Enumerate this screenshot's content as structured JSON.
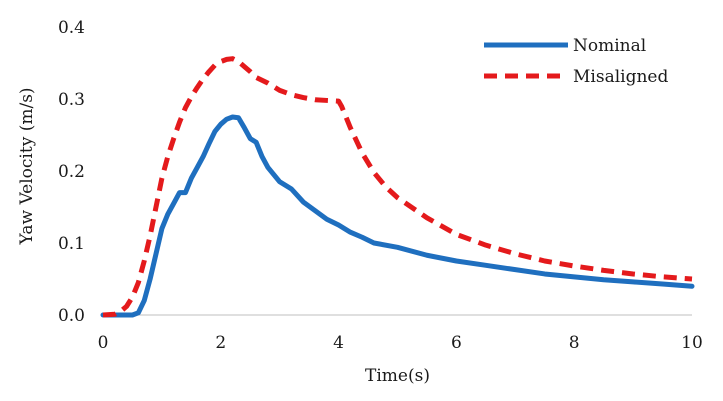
{
  "chart_data": {
    "type": "line",
    "xlabel": "Time(s)",
    "ylabel": "Yaw Velocity (m/s)",
    "xlim": [
      0,
      10
    ],
    "ylim": [
      0,
      0.4
    ],
    "x_ticks": [
      "0",
      "2",
      "4",
      "6",
      "8",
      "10"
    ],
    "y_ticks": [
      "0.0",
      "0.1",
      "0.2",
      "0.3",
      "0.4"
    ],
    "grid": false,
    "legend_position": "top-right",
    "series": [
      {
        "name": "Nominal",
        "color": "#1f6fbf",
        "style": "solid",
        "points": [
          [
            0,
            0.0
          ],
          [
            0.3,
            0.0
          ],
          [
            0.5,
            0.0
          ],
          [
            0.6,
            0.003
          ],
          [
            0.7,
            0.02
          ],
          [
            0.8,
            0.05
          ],
          [
            0.9,
            0.085
          ],
          [
            1.0,
            0.12
          ],
          [
            1.1,
            0.14
          ],
          [
            1.2,
            0.155
          ],
          [
            1.3,
            0.17
          ],
          [
            1.4,
            0.17
          ],
          [
            1.5,
            0.19
          ],
          [
            1.6,
            0.205
          ],
          [
            1.7,
            0.22
          ],
          [
            1.8,
            0.238
          ],
          [
            1.9,
            0.255
          ],
          [
            2.0,
            0.265
          ],
          [
            2.1,
            0.272
          ],
          [
            2.2,
            0.275
          ],
          [
            2.3,
            0.274
          ],
          [
            2.4,
            0.26
          ],
          [
            2.5,
            0.245
          ],
          [
            2.6,
            0.24
          ],
          [
            2.7,
            0.22
          ],
          [
            2.8,
            0.205
          ],
          [
            3.0,
            0.185
          ],
          [
            3.2,
            0.175
          ],
          [
            3.4,
            0.157
          ],
          [
            3.6,
            0.145
          ],
          [
            3.8,
            0.133
          ],
          [
            4.0,
            0.125
          ],
          [
            4.2,
            0.115
          ],
          [
            4.4,
            0.108
          ],
          [
            4.6,
            0.1
          ],
          [
            5.0,
            0.094
          ],
          [
            5.5,
            0.083
          ],
          [
            6.0,
            0.075
          ],
          [
            6.5,
            0.069
          ],
          [
            7.0,
            0.063
          ],
          [
            7.5,
            0.057
          ],
          [
            8.0,
            0.053
          ],
          [
            8.5,
            0.049
          ],
          [
            9.0,
            0.046
          ],
          [
            9.5,
            0.043
          ],
          [
            10.0,
            0.04
          ]
        ]
      },
      {
        "name": "Misaligned",
        "color": "#e41a1c",
        "style": "dashed",
        "points": [
          [
            0,
            0.0
          ],
          [
            0.2,
            0.001
          ],
          [
            0.3,
            0.005
          ],
          [
            0.4,
            0.012
          ],
          [
            0.5,
            0.025
          ],
          [
            0.6,
            0.045
          ],
          [
            0.7,
            0.075
          ],
          [
            0.8,
            0.11
          ],
          [
            0.9,
            0.15
          ],
          [
            1.0,
            0.19
          ],
          [
            1.1,
            0.22
          ],
          [
            1.2,
            0.245
          ],
          [
            1.3,
            0.268
          ],
          [
            1.4,
            0.288
          ],
          [
            1.5,
            0.303
          ],
          [
            1.6,
            0.316
          ],
          [
            1.7,
            0.328
          ],
          [
            1.8,
            0.338
          ],
          [
            1.9,
            0.347
          ],
          [
            2.0,
            0.352
          ],
          [
            2.1,
            0.355
          ],
          [
            2.2,
            0.356
          ],
          [
            2.3,
            0.352
          ],
          [
            2.4,
            0.345
          ],
          [
            2.5,
            0.338
          ],
          [
            2.6,
            0.33
          ],
          [
            2.8,
            0.322
          ],
          [
            3.0,
            0.312
          ],
          [
            3.2,
            0.306
          ],
          [
            3.4,
            0.302
          ],
          [
            3.6,
            0.299
          ],
          [
            3.8,
            0.298
          ],
          [
            4.0,
            0.297
          ],
          [
            4.05,
            0.29
          ],
          [
            4.2,
            0.26
          ],
          [
            4.4,
            0.225
          ],
          [
            4.6,
            0.198
          ],
          [
            4.8,
            0.178
          ],
          [
            5.0,
            0.163
          ],
          [
            5.5,
            0.135
          ],
          [
            6.0,
            0.112
          ],
          [
            6.5,
            0.097
          ],
          [
            7.0,
            0.085
          ],
          [
            7.5,
            0.075
          ],
          [
            8.0,
            0.068
          ],
          [
            8.5,
            0.062
          ],
          [
            9.0,
            0.057
          ],
          [
            9.5,
            0.053
          ],
          [
            10.0,
            0.05
          ]
        ]
      }
    ]
  }
}
